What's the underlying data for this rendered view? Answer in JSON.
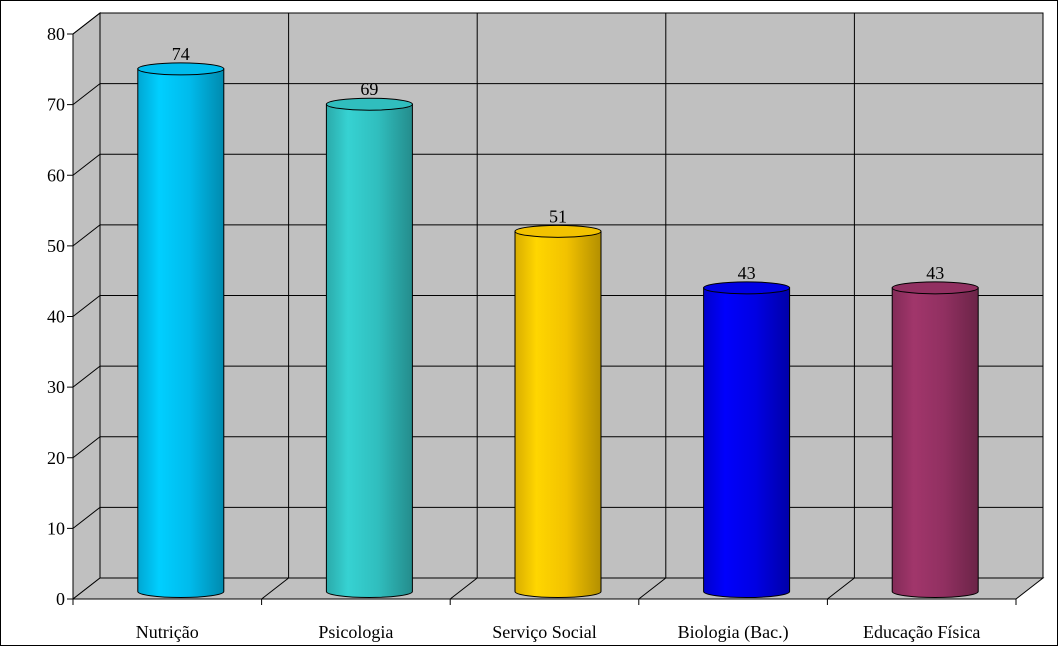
{
  "chart_data": {
    "type": "bar",
    "style": "3d-cylinder",
    "categories": [
      "Nutrição",
      "Psicologia",
      "Serviço Social",
      "Biologia (Bac.)",
      "Educação Física"
    ],
    "values": [
      74,
      69,
      51,
      43,
      43
    ],
    "data_labels": [
      "74",
      "69",
      "51",
      "43",
      "43"
    ],
    "bar_colors": [
      "#00C5F8",
      "#33C8C8",
      "#FFCC00",
      "#0000F0",
      "#993366"
    ],
    "ylim": [
      0,
      80
    ],
    "yticks": [
      0,
      10,
      20,
      30,
      40,
      50,
      60,
      70,
      80
    ],
    "ytick_labels": [
      "0",
      "10",
      "20",
      "30",
      "40",
      "50",
      "60",
      "70",
      "80"
    ],
    "grid": true,
    "legend": "none",
    "title": "",
    "xlabel": "",
    "ylabel": "",
    "wall_color": "#C0C0C0"
  }
}
